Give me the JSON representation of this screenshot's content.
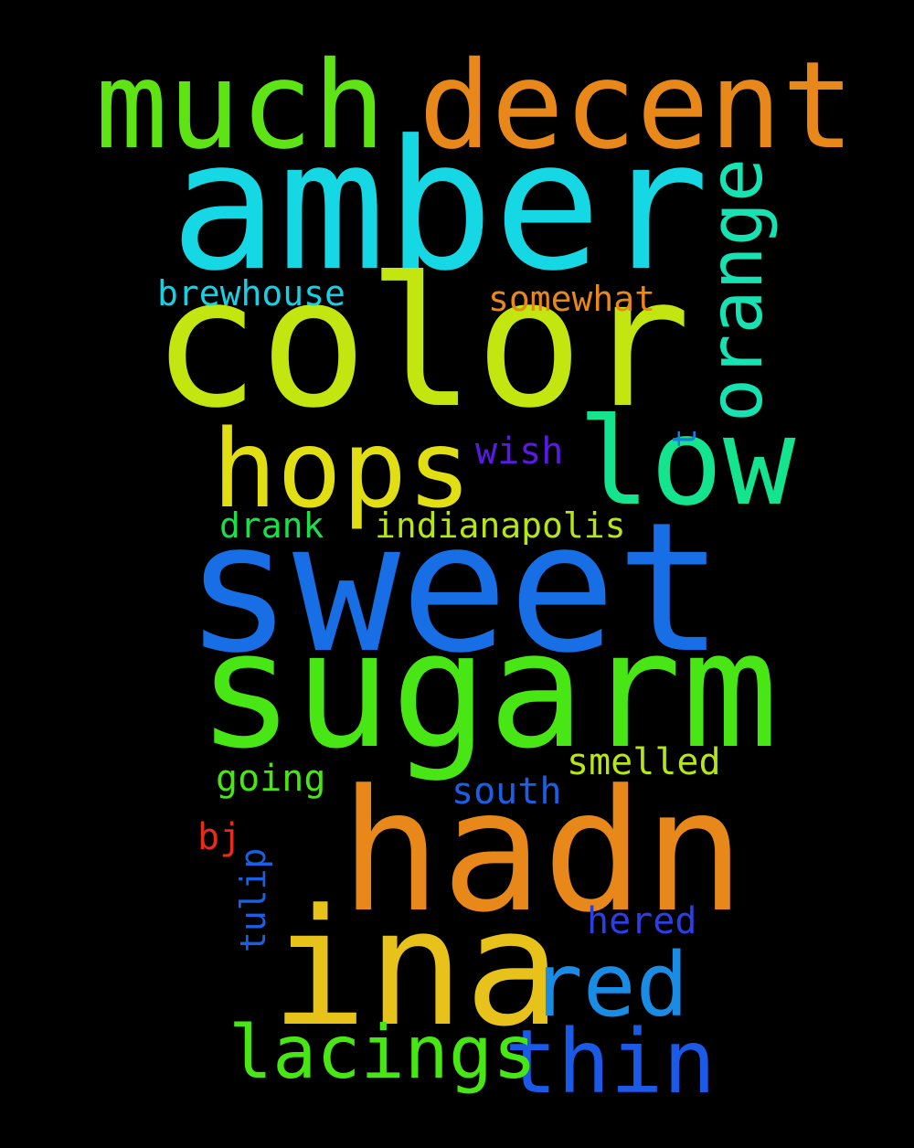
{
  "words": {
    "amber": {
      "text": "amber",
      "color": "#16d8e4"
    },
    "color": {
      "text": "color",
      "color": "#c4e610"
    },
    "sweet": {
      "text": "sweet",
      "color": "#186ee4"
    },
    "sugarm": {
      "text": "sugarm",
      "color": "#48e614"
    },
    "hadn": {
      "text": "hadn",
      "color": "#e8881a"
    },
    "ina": {
      "text": "ina",
      "color": "#e6c21a"
    },
    "much": {
      "text": "much",
      "color": "#5ee414"
    },
    "decent": {
      "text": "decent",
      "color": "#e8881a"
    },
    "hops": {
      "text": "hops",
      "color": "#e2de14"
    },
    "low": {
      "text": "low",
      "color": "#14e48e"
    },
    "orange": {
      "text": "orange",
      "color": "#16e2b2"
    },
    "red": {
      "text": "red",
      "color": "#1a8ce4"
    },
    "thin": {
      "text": "thin",
      "color": "#1a5ae6"
    },
    "lacings": {
      "text": "lacings",
      "color": "#48e614"
    },
    "brewhouse": {
      "text": "brewhouse",
      "color": "#16d0e4"
    },
    "somewhat": {
      "text": "somewhat",
      "color": "#e8881a"
    },
    "wish": {
      "text": "wish",
      "color": "#5a1ae6"
    },
    "t": {
      "text": "t",
      "color": "#1a7ae6"
    },
    "drank": {
      "text": "drank",
      "color": "#18e04a"
    },
    "indianapolis": {
      "text": "indianapolis",
      "color": "#b6e614"
    },
    "smelled": {
      "text": "smelled",
      "color": "#b6e614"
    },
    "going": {
      "text": "going",
      "color": "#48e614"
    },
    "south": {
      "text": "south",
      "color": "#1a60e6"
    },
    "bj": {
      "text": "bj",
      "color": "#e62c1a"
    },
    "tulip": {
      "text": "tulip",
      "color": "#1a60e6"
    },
    "hered": {
      "text": "hered",
      "color": "#2c3ee6"
    }
  }
}
